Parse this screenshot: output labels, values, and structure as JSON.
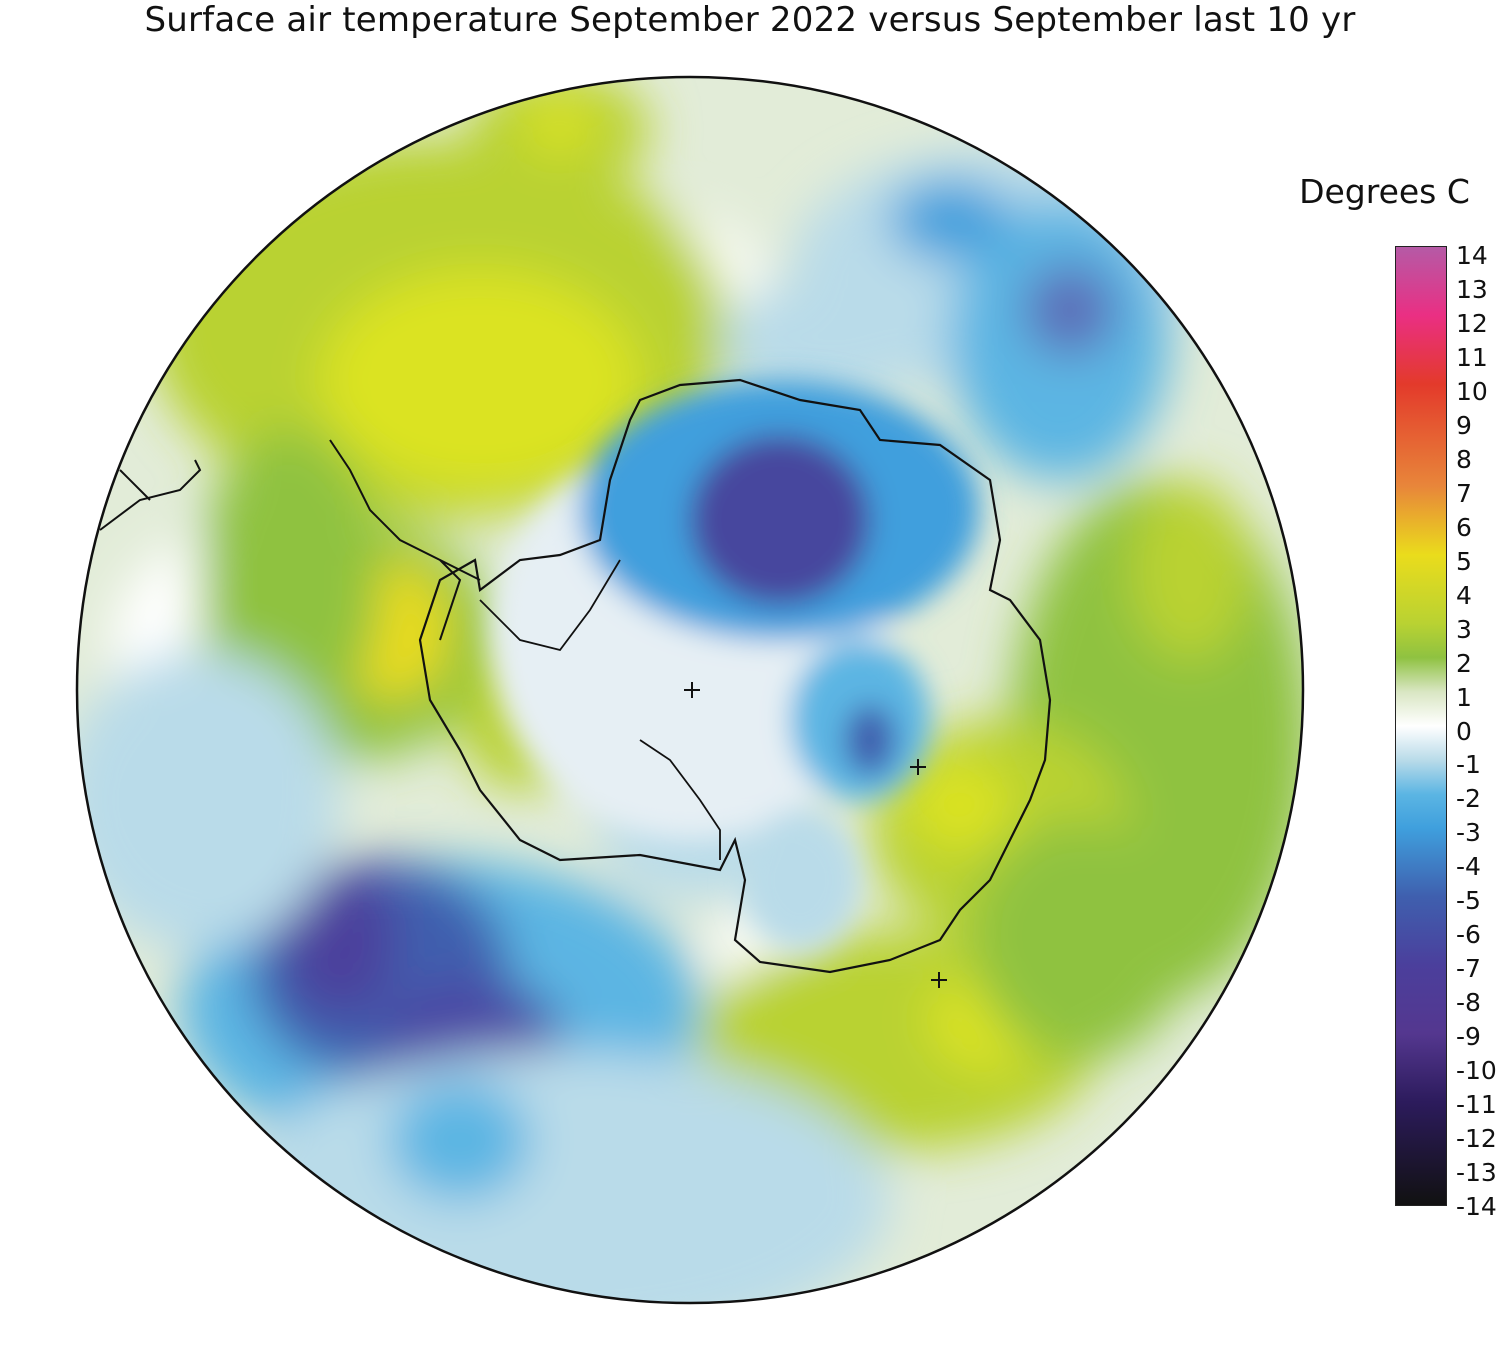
{
  "title": "Surface air temperature September 2022 versus September last 10 yr",
  "legend": {
    "title": "Degrees C",
    "ticks": [
      "14",
      "13",
      "12",
      "11",
      "10",
      "9",
      "8",
      "7",
      "6",
      "5",
      "4",
      "3",
      "2",
      "1",
      "0",
      "-1",
      "-2",
      "-3",
      "-4",
      "-5",
      "-6",
      "-7",
      "-8",
      "-9",
      "-10",
      "-11",
      "-12",
      "-13",
      "-14"
    ],
    "stops": [
      {
        "value": 14,
        "color": "#b55aa6"
      },
      {
        "value": 12,
        "color": "#ea2f83"
      },
      {
        "value": 10,
        "color": "#e33a2b"
      },
      {
        "value": 7,
        "color": "#e8863a"
      },
      {
        "value": 5,
        "color": "#eadc1c"
      },
      {
        "value": 3,
        "color": "#b9d232"
      },
      {
        "value": 2,
        "color": "#8fc241"
      },
      {
        "value": 1,
        "color": "#d9e6c3"
      },
      {
        "value": 0,
        "color": "#ffffff"
      },
      {
        "value": -1,
        "color": "#b9dbe9"
      },
      {
        "value": -2,
        "color": "#5bb5e3"
      },
      {
        "value": -3,
        "color": "#3f9fdd"
      },
      {
        "value": -5,
        "color": "#3f5fae"
      },
      {
        "value": -7,
        "color": "#4b3f9c"
      },
      {
        "value": -9,
        "color": "#54378f"
      },
      {
        "value": -11,
        "color": "#2c1b5c"
      },
      {
        "value": -14,
        "color": "#111111"
      }
    ]
  },
  "map": {
    "projection": "south-polar-stereographic",
    "background": "#e2ecd8",
    "outline": "#111111",
    "markers": [
      "plus",
      "plus",
      "plus"
    ]
  }
}
